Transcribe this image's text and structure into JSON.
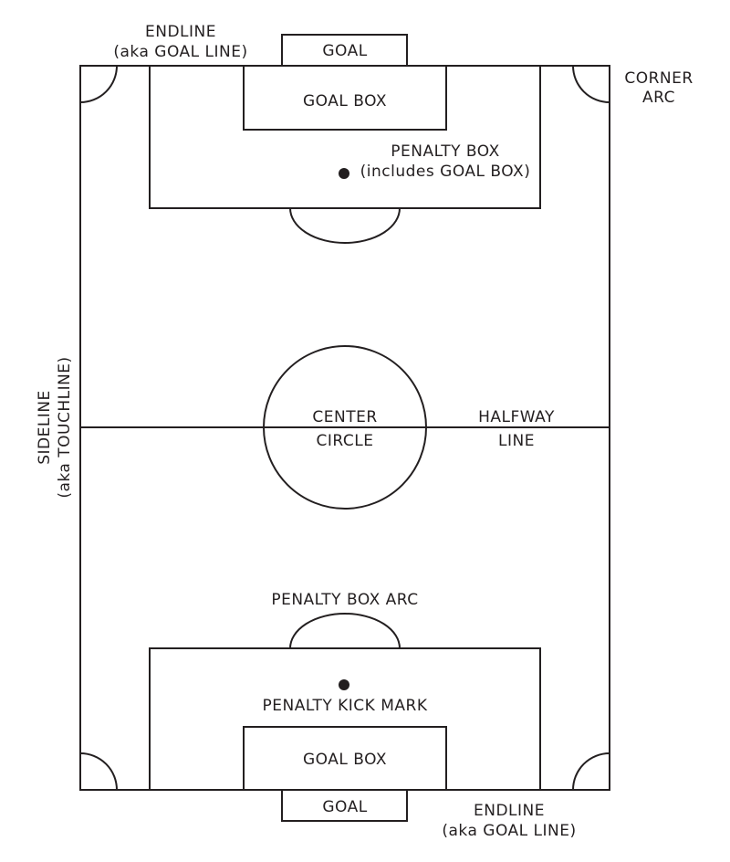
{
  "labels": {
    "endline_top": [
      "ENDLINE",
      "(aka GOAL LINE)"
    ],
    "goal_top": "GOAL",
    "goal_box_top": "GOAL BOX",
    "corner_arc": [
      "CORNER",
      "ARC"
    ],
    "penalty_box": [
      "PENALTY BOX",
      "(includes GOAL BOX)"
    ],
    "sideline": [
      "SIDELINE",
      "(aka TOUCHLINE)"
    ],
    "center_circle": [
      "CENTER",
      "CIRCLE"
    ],
    "halfway_line": [
      "HALFWAY",
      "LINE"
    ],
    "penalty_box_arc": "PENALTY BOX ARC",
    "penalty_kick_mark": "PENALTY KICK MARK",
    "goal_box_bottom": "GOAL BOX",
    "goal_bottom": "GOAL",
    "endline_bottom": [
      "ENDLINE",
      "(aka GOAL LINE)"
    ]
  },
  "colors": {
    "ink": "#231f20",
    "background": "#ffffff"
  }
}
